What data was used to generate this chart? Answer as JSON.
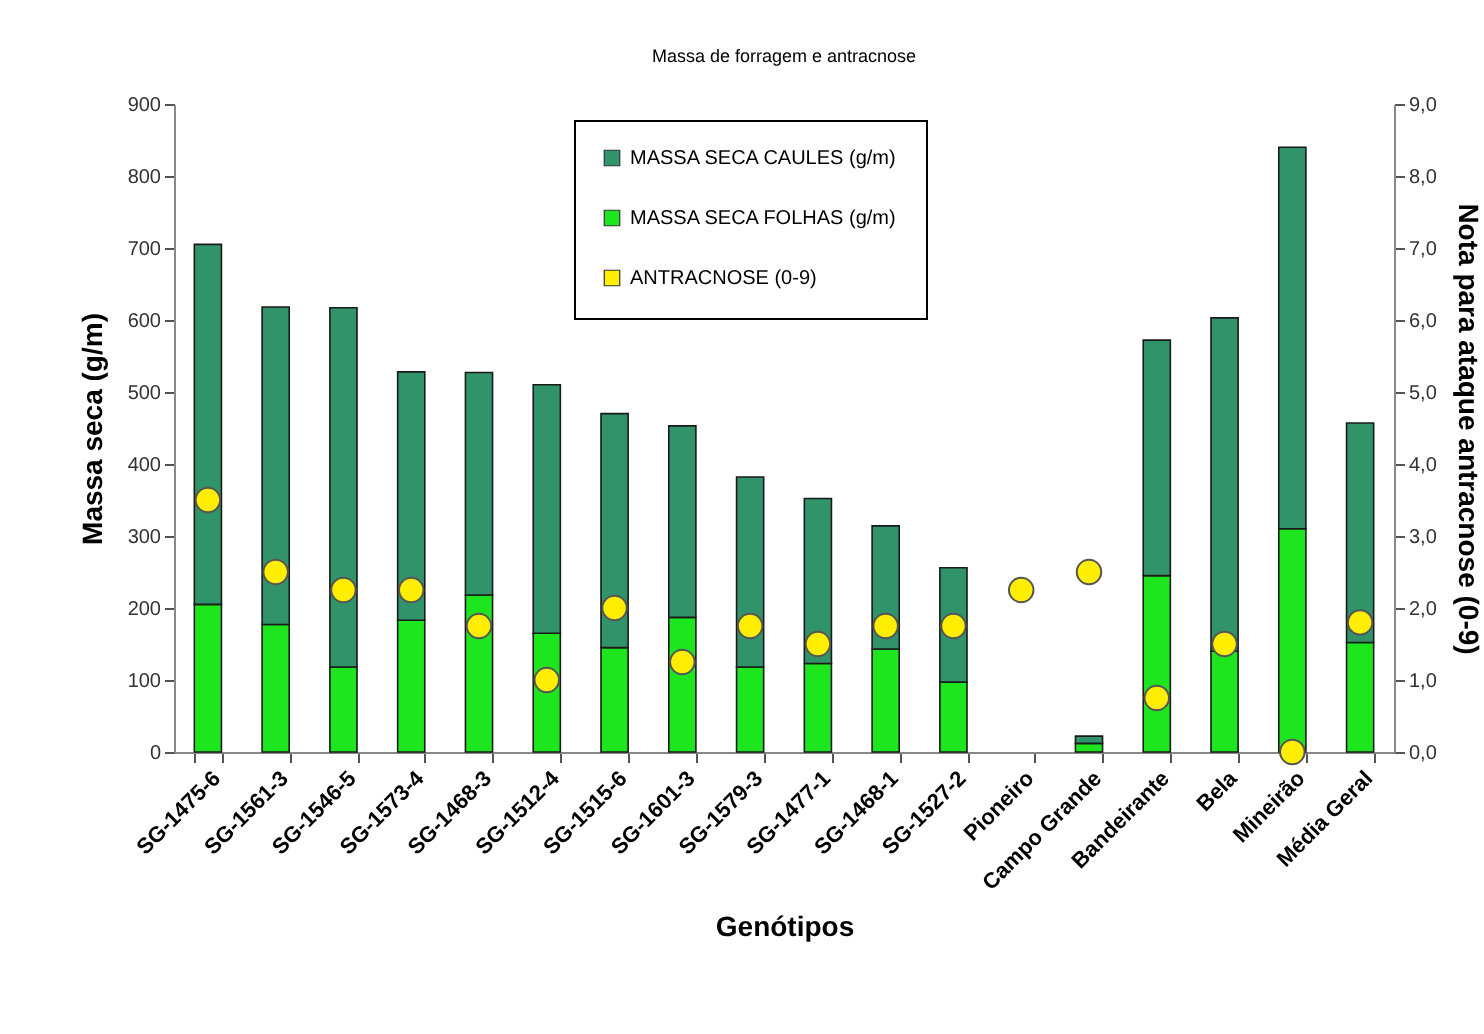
{
  "chart_data": {
    "type": "bar",
    "title": "Massa de forragem e antracnose",
    "xlabel": "Genótipos",
    "ylabel": "Massa seca (g/m)",
    "y2label": "Nota para ataque antracnose (0-9)",
    "categories": [
      "SG-1475-6",
      "SG-1561-3",
      "SG-1546-5",
      "SG-1573-4",
      "SG-1468-3",
      "SG-1512-4",
      "SG-1515-6",
      "SG-1601-3",
      "SG-1579-3",
      "SG-1477-1",
      "SG-1468-1",
      "SG-1527-2",
      "Pioneiro",
      "Campo Grande",
      "Bandeirante",
      "Bela",
      "Mineirão",
      "Média Geral"
    ],
    "stacked": true,
    "series": [
      {
        "name": "MASSA SECA FOLHAS (g/m)",
        "color": "#1ee61e",
        "values": [
          205,
          177,
          118,
          183,
          218,
          165,
          145,
          187,
          118,
          123,
          143,
          97,
          null,
          12,
          245,
          140,
          310,
          152
        ]
      },
      {
        "name": "MASSA SECA CAULES (g/m)",
        "color": "#31936a",
        "values": [
          500,
          441,
          499,
          345,
          309,
          345,
          325,
          266,
          264,
          229,
          171,
          159,
          null,
          10,
          327,
          463,
          530,
          305
        ]
      },
      {
        "name": "ANTRACNOSE (0-9)",
        "type": "scatter",
        "axis": "y2",
        "color": "#ffee00",
        "marker": "circle",
        "values": [
          3.5,
          2.5,
          2.25,
          2.25,
          1.75,
          1.0,
          2.0,
          1.25,
          1.75,
          1.5,
          1.75,
          1.75,
          2.25,
          2.5,
          0.75,
          1.5,
          0.0,
          1.8
        ]
      }
    ],
    "ylim": [
      0,
      900
    ],
    "yticks": [
      0,
      100,
      200,
      300,
      400,
      500,
      600,
      700,
      800,
      900
    ],
    "y2lim": [
      0,
      9
    ],
    "y2ticks": [
      {
        "value": 0,
        "label": "0,0"
      },
      {
        "value": 1,
        "label": "1,0"
      },
      {
        "value": 2,
        "label": "2,0"
      },
      {
        "value": 3,
        "label": "3,0"
      },
      {
        "value": 4,
        "label": "4,0"
      },
      {
        "value": 5,
        "label": "5,0"
      },
      {
        "value": 6,
        "label": "6,0"
      },
      {
        "value": 7,
        "label": "7,0"
      },
      {
        "value": 8,
        "label": "8,0"
      },
      {
        "value": 9,
        "label": "9,0"
      }
    ],
    "grid": false,
    "legend": "top"
  }
}
